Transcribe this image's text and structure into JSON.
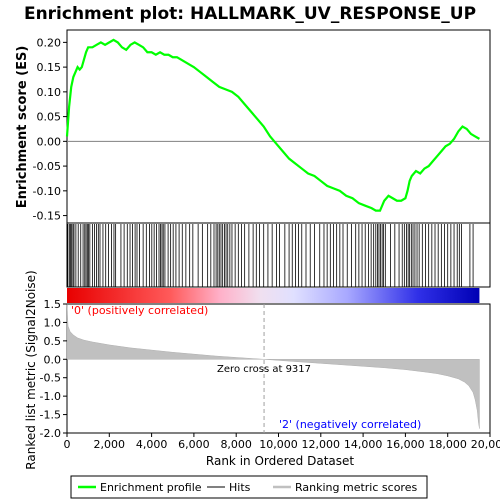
{
  "chart_data": {
    "type": "line",
    "title": "Enrichment plot: HALLMARK_UV_RESPONSE_UP",
    "es_panel": {
      "ylabel": "Enrichment score (ES)",
      "ylim": [
        -0.165,
        0.225
      ],
      "yticks": [
        -0.15,
        -0.1,
        -0.05,
        0.0,
        0.05,
        0.1,
        0.15,
        0.2
      ],
      "ytick_labels": [
        "-0.15",
        "-0.10",
        "-0.05",
        "0.00",
        "0.05",
        "0.10",
        "0.15",
        "0.20"
      ],
      "series": {
        "name": "Enrichment profile",
        "color": "#00ff00",
        "x": [
          0,
          100,
          200,
          300,
          400,
          500,
          600,
          700,
          800,
          900,
          1000,
          1200,
          1400,
          1600,
          1800,
          2000,
          2200,
          2400,
          2600,
          2800,
          3000,
          3200,
          3400,
          3600,
          3800,
          4000,
          4200,
          4400,
          4600,
          4800,
          5000,
          5200,
          5400,
          5600,
          5800,
          6000,
          6300,
          6600,
          6900,
          7200,
          7500,
          7800,
          8100,
          8400,
          8700,
          9000,
          9300,
          9600,
          9900,
          10200,
          10500,
          10800,
          11100,
          11400,
          11700,
          12000,
          12300,
          12600,
          12900,
          13200,
          13500,
          13800,
          14100,
          14400,
          14600,
          14800,
          15000,
          15200,
          15400,
          15600,
          15800,
          16000,
          16100,
          16200,
          16300,
          16500,
          16700,
          16900,
          17100,
          17300,
          17500,
          17700,
          17900,
          18100,
          18300,
          18500,
          18700,
          18900,
          19100,
          19300,
          19500
        ],
        "y": [
          0.01,
          0.07,
          0.11,
          0.13,
          0.14,
          0.15,
          0.145,
          0.15,
          0.165,
          0.18,
          0.19,
          0.19,
          0.195,
          0.2,
          0.195,
          0.2,
          0.205,
          0.2,
          0.19,
          0.185,
          0.195,
          0.2,
          0.195,
          0.19,
          0.18,
          0.18,
          0.175,
          0.18,
          0.175,
          0.175,
          0.17,
          0.17,
          0.165,
          0.16,
          0.155,
          0.15,
          0.14,
          0.13,
          0.12,
          0.11,
          0.105,
          0.1,
          0.09,
          0.075,
          0.06,
          0.045,
          0.03,
          0.01,
          -0.005,
          -0.02,
          -0.035,
          -0.045,
          -0.055,
          -0.065,
          -0.07,
          -0.08,
          -0.09,
          -0.095,
          -0.1,
          -0.11,
          -0.115,
          -0.125,
          -0.13,
          -0.135,
          -0.14,
          -0.14,
          -0.12,
          -0.11,
          -0.115,
          -0.12,
          -0.12,
          -0.115,
          -0.1,
          -0.08,
          -0.07,
          -0.06,
          -0.065,
          -0.055,
          -0.05,
          -0.04,
          -0.03,
          -0.02,
          -0.01,
          -0.005,
          0.005,
          0.02,
          0.03,
          0.025,
          0.015,
          0.01,
          0.005
        ]
      }
    },
    "hits_panel": {
      "series_name": "Hits",
      "hits": [
        40,
        110,
        160,
        220,
        280,
        330,
        420,
        530,
        650,
        760,
        840,
        900,
        960,
        1010,
        1080,
        1200,
        1300,
        1390,
        1480,
        1560,
        1700,
        1830,
        1960,
        2100,
        2220,
        2300,
        2550,
        2700,
        2850,
        2980,
        3100,
        3220,
        3310,
        3430,
        3600,
        3750,
        3900,
        4010,
        4120,
        4230,
        4350,
        4420,
        4490,
        4550,
        4630,
        4780,
        4900,
        5020,
        5150,
        5300,
        5450,
        5620,
        5800,
        5950,
        6200,
        6400,
        6650,
        6800,
        6950,
        7050,
        7130,
        7200,
        7280,
        7360,
        7450,
        7520,
        7600,
        7700,
        7800,
        7950,
        8100,
        8250,
        8400,
        8600,
        8800,
        8950,
        9100,
        9300,
        9500,
        9700,
        9900,
        10050,
        10300,
        10500,
        10650,
        10800,
        10950,
        11100,
        11300,
        11500,
        11700,
        11950,
        12150,
        12300,
        12450,
        12600,
        12750,
        12900,
        13050,
        13250,
        13450,
        13650,
        13800,
        13950,
        14100,
        14250,
        14380,
        14500,
        14600,
        14680,
        14750,
        14820,
        14900,
        14970,
        15050,
        15300,
        15500,
        15700,
        15850,
        15950,
        16050,
        16130,
        16200,
        16280,
        16360,
        16450,
        16550,
        16650,
        16800,
        16950,
        17100,
        17250,
        17400,
        17550,
        17700,
        17850,
        18000,
        18150,
        18300,
        18450,
        18550,
        18650,
        19050,
        19200
      ]
    },
    "ranking_panel": {
      "ylabel": "Ranked list metric (Signal2Noise)",
      "ylim": [
        -2.0,
        1.5
      ],
      "yticks": [
        1.5,
        1.0,
        0.5,
        0.0,
        -0.5,
        -1.0,
        -1.5,
        -2.0
      ],
      "ytick_labels": [
        "1.5",
        "1.0",
        "0.5",
        "0.0",
        "-0.5",
        "-1.0",
        "-1.5",
        "-2.0"
      ],
      "series_name": "Ranking metric scores",
      "fill_color": "#c0c0c0",
      "x": [
        0,
        50,
        150,
        300,
        500,
        800,
        1200,
        2000,
        3000,
        4000,
        5000,
        6000,
        7000,
        8000,
        9317,
        10000,
        11000,
        12000,
        13000,
        14000,
        15000,
        16000,
        17000,
        17500,
        18000,
        18500,
        18800,
        19000,
        19200,
        19300,
        19400,
        19450,
        19500
      ],
      "y": [
        1.5,
        0.9,
        0.75,
        0.66,
        0.58,
        0.52,
        0.47,
        0.39,
        0.31,
        0.25,
        0.19,
        0.14,
        0.09,
        0.05,
        0.0,
        -0.03,
        -0.07,
        -0.11,
        -0.15,
        -0.19,
        -0.23,
        -0.28,
        -0.35,
        -0.39,
        -0.45,
        -0.53,
        -0.62,
        -0.72,
        -0.9,
        -1.1,
        -1.4,
        -1.7,
        -1.88
      ],
      "zero_cross_label": "Zero cross at 9317",
      "zero_cross": 9317,
      "pos_label": "'0' (positively correlated)",
      "neg_label": "'2' (negatively correlated)"
    },
    "xaxis": {
      "xlabel": "Rank in Ordered Dataset",
      "xlim": [
        0,
        20000
      ],
      "xticks": [
        0,
        2000,
        4000,
        6000,
        8000,
        10000,
        12000,
        14000,
        16000,
        18000,
        20000
      ],
      "xtick_labels": [
        "0",
        "2,000",
        "4,000",
        "6,000",
        "8,000",
        "10,000",
        "12,000",
        "14,000",
        "16,000",
        "18,000",
        "20,000"
      ],
      "list_size": 19500
    },
    "legend": {
      "placement": "bottom",
      "items": [
        {
          "label": "Enrichment profile",
          "color": "#00ff00"
        },
        {
          "label": "Hits",
          "color": "#000000"
        },
        {
          "label": "Ranking metric scores",
          "color": "#c0c0c0"
        }
      ]
    }
  }
}
